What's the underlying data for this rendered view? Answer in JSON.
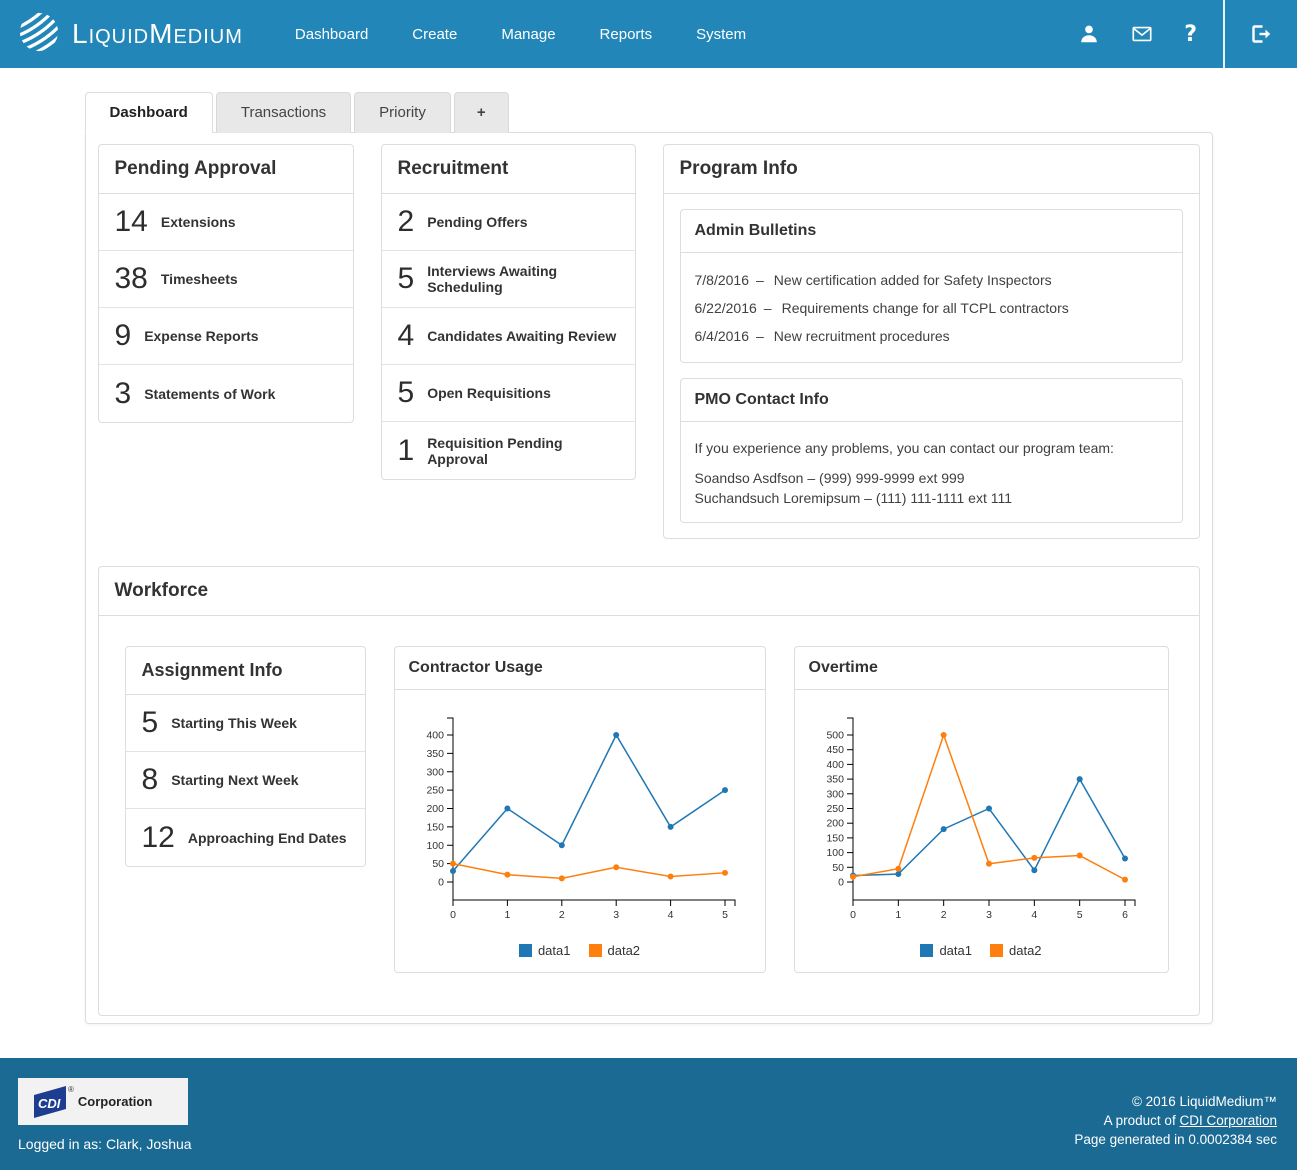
{
  "nav": {
    "brand": "LiquidMedium",
    "items": [
      {
        "label": "Dashboard"
      },
      {
        "label": "Create"
      },
      {
        "label": "Manage"
      },
      {
        "label": "Reports"
      },
      {
        "label": "System"
      }
    ],
    "icon_names": [
      "liquidmedium-logo-icon",
      "user-icon",
      "mail-icon",
      "help-icon",
      "logout-icon"
    ],
    "help_glyph": "?"
  },
  "tabs": [
    {
      "label": "Dashboard",
      "active": true
    },
    {
      "label": "Transactions",
      "active": false
    },
    {
      "label": "Priority",
      "active": false
    },
    {
      "label": "+",
      "active": false
    }
  ],
  "panels": {
    "pending_approval": {
      "title": "Pending Approval",
      "items": [
        {
          "count": "14",
          "label": "Extensions"
        },
        {
          "count": "38",
          "label": "Timesheets"
        },
        {
          "count": "9",
          "label": "Expense Reports"
        },
        {
          "count": "3",
          "label": "Statements of Work"
        }
      ]
    },
    "recruitment": {
      "title": "Recruitment",
      "items": [
        {
          "count": "2",
          "label": "Pending Offers"
        },
        {
          "count": "5",
          "label": "Interviews Awaiting Scheduling"
        },
        {
          "count": "4",
          "label": "Candidates Awaiting Review"
        },
        {
          "count": "5",
          "label": "Open Requisitions"
        },
        {
          "count": "1",
          "label": "Requisition Pending Approval"
        }
      ]
    },
    "program_info": {
      "title": "Program Info",
      "admin_bulletins": {
        "title": "Admin Bulletins",
        "separator": "–",
        "items": [
          {
            "date": "7/8/2016",
            "text": "New certification added for Safety Inspectors"
          },
          {
            "date": "6/22/2016",
            "text": "Requirements change for all TCPL contractors"
          },
          {
            "date": "6/4/2016",
            "text": "New recruitment procedures"
          }
        ]
      },
      "pmo_contact": {
        "title": "PMO Contact Info",
        "intro": "If you experience any problems, you can contact our program team:",
        "contacts": [
          "Soandso Asdfson – (999) 999-9999 ext 999",
          "Suchandsuch Loremipsum – (111) 111-1111 ext 111"
        ]
      }
    },
    "workforce": {
      "title": "Workforce",
      "assignment_info": {
        "title": "Assignment Info",
        "items": [
          {
            "count": "5",
            "label": "Starting This Week"
          },
          {
            "count": "8",
            "label": "Starting Next Week"
          },
          {
            "count": "12",
            "label": "Approaching End Dates"
          }
        ]
      }
    }
  },
  "chart_data": [
    {
      "type": "line",
      "name": "contractor-usage",
      "title": "Contractor Usage",
      "x": [
        0,
        1,
        2,
        3,
        4,
        5
      ],
      "series": [
        {
          "name": "data1",
          "color": "#1f77b4",
          "values": [
            30,
            200,
            100,
            400,
            150,
            250
          ]
        },
        {
          "name": "data2",
          "color": "#ff7f0e",
          "values": [
            50,
            20,
            10,
            40,
            15,
            25
          ]
        }
      ],
      "xlabel": "",
      "ylabel": "",
      "ylim": [
        0,
        400
      ],
      "ytick": 50,
      "grid": false,
      "legend_position": "bottom",
      "markers": true
    },
    {
      "type": "line",
      "name": "overtime",
      "title": "Overtime",
      "x": [
        0,
        1,
        2,
        3,
        4,
        5,
        6
      ],
      "series": [
        {
          "name": "data1",
          "color": "#1f77b4",
          "values": [
            22,
            27,
            180,
            250,
            40,
            350,
            80
          ]
        },
        {
          "name": "data2",
          "color": "#ff7f0e",
          "values": [
            18,
            45,
            500,
            62,
            82,
            90,
            8
          ]
        }
      ],
      "xlabel": "",
      "ylabel": "",
      "ylim": [
        0,
        500
      ],
      "ytick": 50,
      "grid": false,
      "legend_position": "bottom",
      "markers": true
    }
  ],
  "footer": {
    "logo": {
      "mark": "CDI",
      "reg": "®",
      "text": "Corporation"
    },
    "logged_in": "Logged in as: Clark, Joshua",
    "copyright": "© 2016 LiquidMedium™",
    "product_prefix": "A product of ",
    "product_link": "CDI Corporation",
    "generated": "Page generated in 0.0002384 sec"
  },
  "colors": {
    "header_bg": "#2287b8",
    "footer_bg": "#1a6a94",
    "series_blue": "#1f77b4",
    "series_orange": "#ff7f0e"
  }
}
